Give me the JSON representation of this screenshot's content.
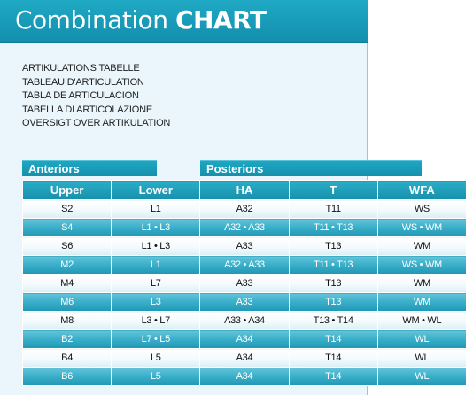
{
  "title": {
    "light": "Combination ",
    "bold": "CHART"
  },
  "languages": [
    "ARTIKULATIONS TABELLE",
    "TABLEAU D'ARTICULATION",
    "TABLA DE ARTICULACION",
    "TABELLA DI ARTICOLAZIONE",
    "OVERSIGT OVER ARTIKULATION"
  ],
  "groups": {
    "anteriors": "Anteriors",
    "posteriors": "Posteriors"
  },
  "headers": [
    "Upper",
    "Lower",
    "HA",
    "T",
    "WFA"
  ],
  "rows": [
    [
      "S2",
      "L1",
      "A32",
      "T11",
      "WS"
    ],
    [
      "S4",
      "L1 • L3",
      "A32 • A33",
      "T11 • T13",
      "WS • WM"
    ],
    [
      "S6",
      "L1 • L3",
      "A33",
      "T13",
      "WM"
    ],
    [
      "M2",
      "L1",
      "A32 • A33",
      "T11 • T13",
      "WS • WM"
    ],
    [
      "M4",
      "L7",
      "A33",
      "T13",
      "WM"
    ],
    [
      "M6",
      "L3",
      "A33",
      "T13",
      "WM"
    ],
    [
      "M8",
      "L3 • L7",
      "A33 • A34",
      "T13 • T14",
      "WM • WL"
    ],
    [
      "B2",
      "L7 • L5",
      "A34",
      "T14",
      "WL"
    ],
    [
      "B4",
      "L5",
      "A34",
      "T14",
      "WL"
    ],
    [
      "B6",
      "L5",
      "A34",
      "T14",
      "WL"
    ]
  ],
  "colors": {
    "accent": "#1a9fbd",
    "panel": "#eaf6fb"
  }
}
